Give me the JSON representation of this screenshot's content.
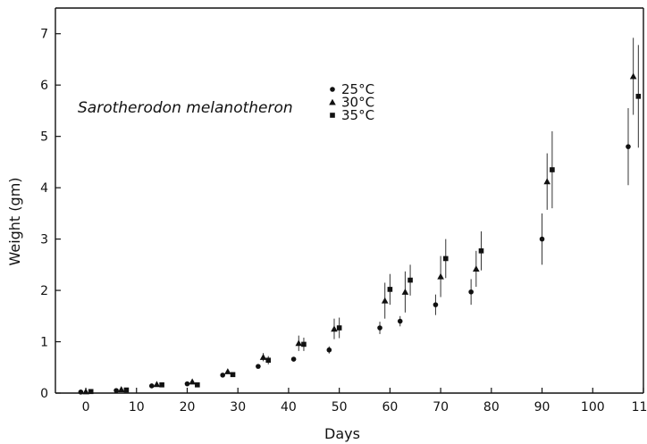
{
  "chart_data": {
    "type": "scatter",
    "title": "",
    "annotation": "Sarotherodon melanotheron",
    "xlabel": "Days",
    "ylabel": "Weight  (gm)",
    "xlim": [
      -6,
      110
    ],
    "ylim": [
      0,
      7.5
    ],
    "xticks": [
      0,
      10,
      20,
      30,
      40,
      50,
      60,
      70,
      80,
      90,
      100,
      110
    ],
    "xtick_labels": [
      "0",
      "10",
      "20",
      "30",
      "40",
      "50",
      "60",
      "70",
      "80",
      "90",
      "100",
      "110"
    ],
    "yticks": [
      0,
      1,
      2,
      3,
      4,
      5,
      6,
      7
    ],
    "ytick_labels": [
      "0",
      "1",
      "2",
      "3",
      "4",
      "5",
      "6",
      "7"
    ],
    "grid": false,
    "legend_position": "top-center",
    "series": [
      {
        "name": "25°C",
        "marker": "circle",
        "points": [
          {
            "x": -1,
            "y": 0.02,
            "err": 0
          },
          {
            "x": 6,
            "y": 0.05,
            "err": 0
          },
          {
            "x": 13,
            "y": 0.14,
            "err": 0
          },
          {
            "x": 20,
            "y": 0.18,
            "err": 0
          },
          {
            "x": 27,
            "y": 0.35,
            "err": 0
          },
          {
            "x": 34,
            "y": 0.52,
            "err": 0
          },
          {
            "x": 41,
            "y": 0.66,
            "err": 0
          },
          {
            "x": 48,
            "y": 0.84,
            "err": 0.07
          },
          {
            "x": 58,
            "y": 1.27,
            "err": 0.12
          },
          {
            "x": 62,
            "y": 1.4,
            "err": 0.1
          },
          {
            "x": 69,
            "y": 1.72,
            "err": 0.2
          },
          {
            "x": 76,
            "y": 1.97,
            "err": 0.25
          },
          {
            "x": 90,
            "y": 3.0,
            "err": 0.5
          },
          {
            "x": 107,
            "y": 4.8,
            "err": 0.75
          }
        ]
      },
      {
        "name": "30°C",
        "marker": "triangle",
        "points": [
          {
            "x": 0,
            "y": 0.03,
            "err": 0
          },
          {
            "x": 7,
            "y": 0.07,
            "err": 0
          },
          {
            "x": 14,
            "y": 0.17,
            "err": 0
          },
          {
            "x": 21,
            "y": 0.22,
            "err": 0
          },
          {
            "x": 28,
            "y": 0.42,
            "err": 0
          },
          {
            "x": 35,
            "y": 0.7,
            "err": 0.08
          },
          {
            "x": 42,
            "y": 0.97,
            "err": 0.15
          },
          {
            "x": 49,
            "y": 1.25,
            "err": 0.2
          },
          {
            "x": 59,
            "y": 1.8,
            "err": 0.35
          },
          {
            "x": 63,
            "y": 1.97,
            "err": 0.4
          },
          {
            "x": 70,
            "y": 2.27,
            "err": 0.4
          },
          {
            "x": 77,
            "y": 2.42,
            "err": 0.35
          },
          {
            "x": 91,
            "y": 4.12,
            "err": 0.55
          },
          {
            "x": 108,
            "y": 6.17,
            "err": 0.75
          }
        ]
      },
      {
        "name": "35°C",
        "marker": "square",
        "points": [
          {
            "x": 1,
            "y": 0.03,
            "err": 0
          },
          {
            "x": 8,
            "y": 0.06,
            "err": 0
          },
          {
            "x": 15,
            "y": 0.16,
            "err": 0
          },
          {
            "x": 22,
            "y": 0.16,
            "err": 0
          },
          {
            "x": 29,
            "y": 0.36,
            "err": 0
          },
          {
            "x": 36,
            "y": 0.64,
            "err": 0.08
          },
          {
            "x": 43,
            "y": 0.95,
            "err": 0.13
          },
          {
            "x": 50,
            "y": 1.27,
            "err": 0.2
          },
          {
            "x": 60,
            "y": 2.02,
            "err": 0.3
          },
          {
            "x": 64,
            "y": 2.2,
            "err": 0.3
          },
          {
            "x": 71,
            "y": 2.62,
            "err": 0.38
          },
          {
            "x": 78,
            "y": 2.77,
            "err": 0.38
          },
          {
            "x": 92,
            "y": 4.35,
            "err": 0.75
          },
          {
            "x": 109,
            "y": 5.78,
            "err": 1.0
          }
        ]
      }
    ]
  }
}
